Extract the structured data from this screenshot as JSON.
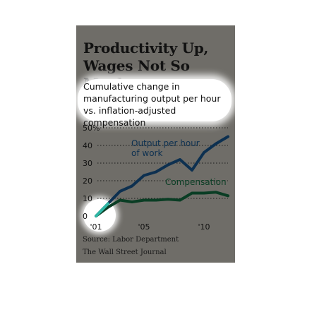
{
  "chart_data": {
    "type": "line",
    "title": "Productivity Up, Wages Not So Much",
    "subtitle": "Cumulative change in manufacturing output per hour vs. inflation-adjusted compensation",
    "x": [
      2001,
      2002,
      2003,
      2004,
      2005,
      2006,
      2007,
      2008,
      2009,
      2010,
      2011,
      2012
    ],
    "xtick_labels": [
      "'01",
      "'05",
      "'10"
    ],
    "xtick_years": [
      2001,
      2005,
      2010
    ],
    "ylim": [
      0,
      50
    ],
    "yticks": [
      0,
      10,
      20,
      30,
      40,
      50
    ],
    "ytick_labels": [
      "0",
      "10",
      "20",
      "30",
      "40",
      "50%"
    ],
    "series": [
      {
        "name": "Output per hour of work",
        "label_lines": [
          "Output per hour",
          "of work"
        ],
        "color": "#0d3050",
        "values": [
          0,
          7,
          14,
          17,
          23,
          25,
          29,
          32,
          26,
          36,
          41,
          45
        ]
      },
      {
        "name": "Compensation",
        "color": "#0a3d24",
        "values": [
          0,
          5,
          9,
          8,
          9,
          9,
          9.5,
          9,
          13,
          13,
          13.5,
          11.5
        ]
      }
    ],
    "grid": "dotted"
  },
  "source": {
    "text": "Source: Labor Department",
    "publisher": "The Wall Street Journal"
  }
}
